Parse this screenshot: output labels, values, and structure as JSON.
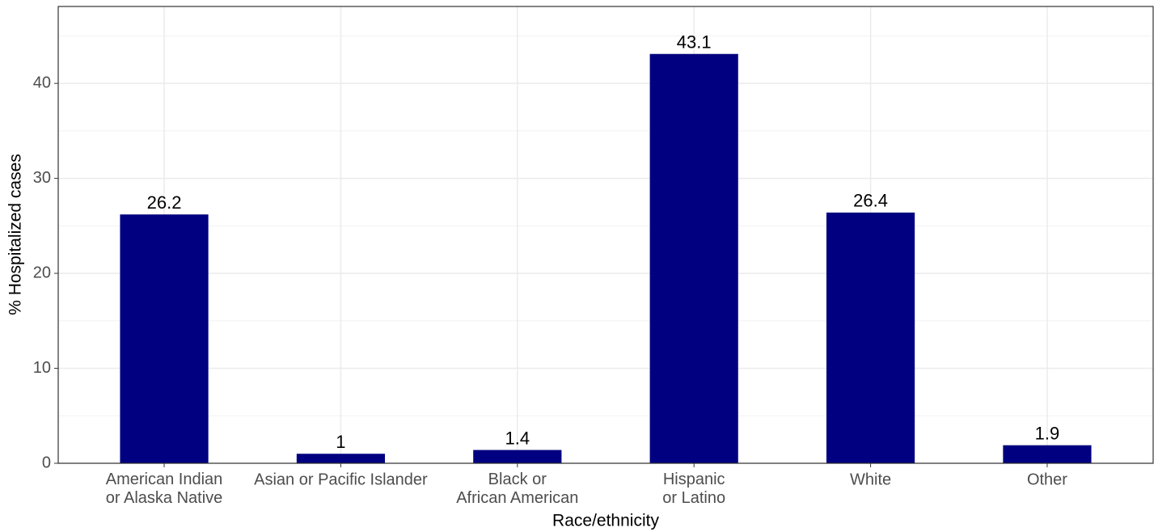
{
  "chart_data": {
    "type": "bar",
    "x_label": "Race/ethnicity",
    "y_label": "% Hospitalized cases",
    "categories": [
      "American Indian\nor Alaska Native",
      "Asian or Pacific Islander",
      "Black or\nAfrican American",
      "Hispanic\nor Latino",
      "White",
      "Other"
    ],
    "values": [
      26.2,
      1,
      1.4,
      43.1,
      26.4,
      1.9
    ],
    "color": "#000080",
    "ylim": [
      0,
      48.1
    ],
    "yticks": [
      0,
      10,
      20,
      30,
      40
    ],
    "grid": true
  }
}
